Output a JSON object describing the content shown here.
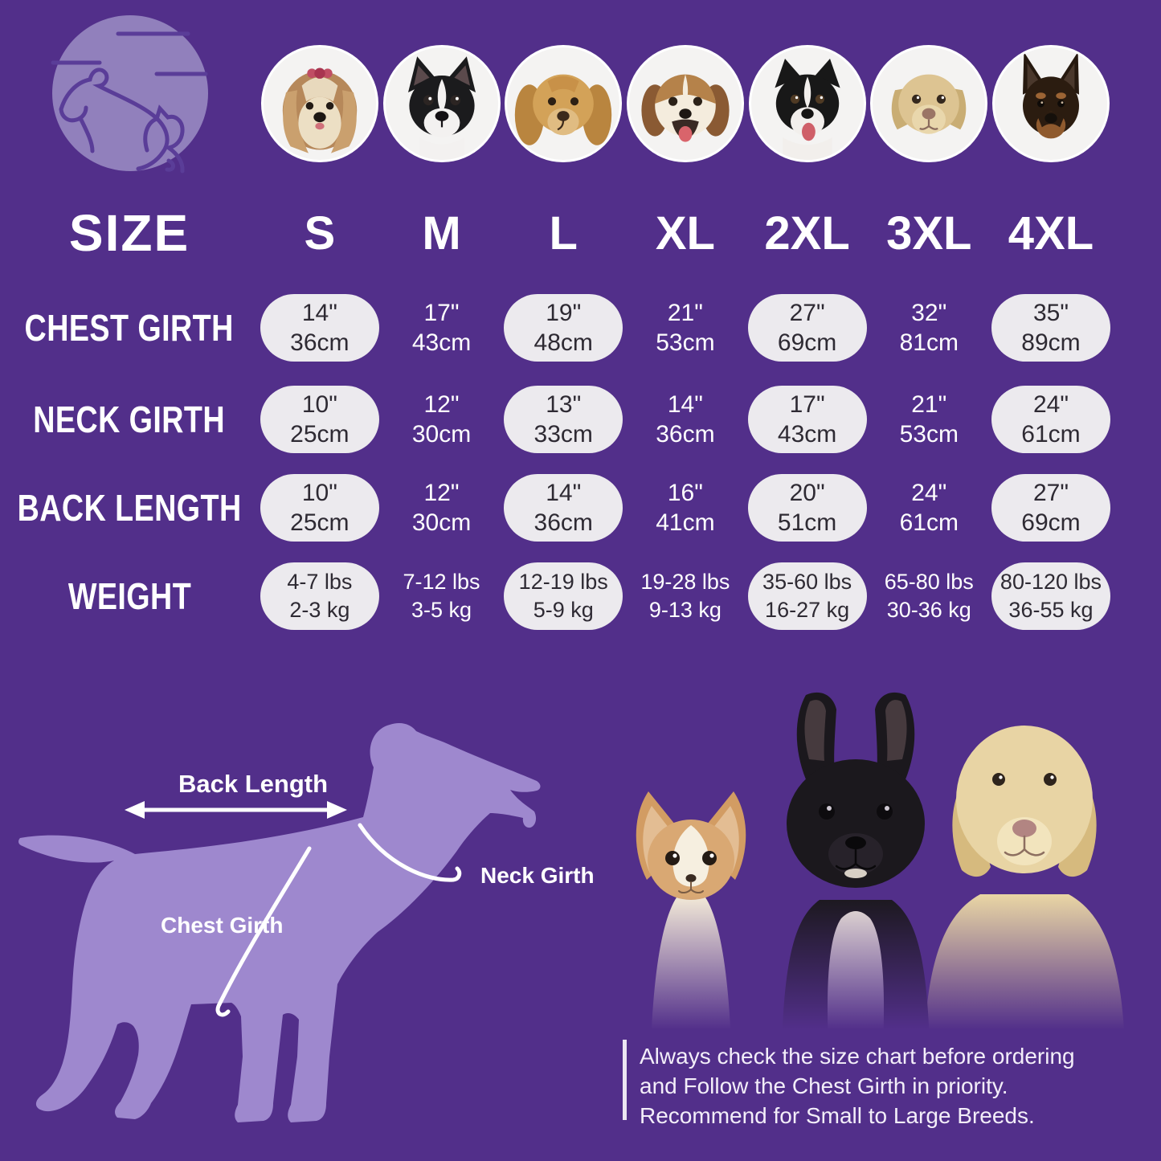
{
  "colors": {
    "background": "#522f8a",
    "silhouette": "#9e88ce",
    "logo_circle": "#9180bc",
    "logo_line": "#5a3d98",
    "pill_fill": "#eceaee",
    "pill_text": "#2e2a33",
    "text": "#ffffff"
  },
  "images": {
    "logo": "dog-and-cat-logo",
    "diagram": "dog-measurement-silhouette",
    "bottom_photo": "chihuahua-french-bulldog-labrador-photo"
  },
  "breeds": [
    "shih-tzu",
    "boston-terrier",
    "cocker-spaniel",
    "beagle",
    "border-collie",
    "labrador",
    "doberman"
  ],
  "table": {
    "corner_label": "SIZE",
    "sizes": [
      "S",
      "M",
      "L",
      "XL",
      "2XL",
      "3XL",
      "4XL"
    ],
    "rows": [
      {
        "label": "CHEST GIRTH",
        "cells": [
          [
            "14\"",
            "36cm"
          ],
          [
            "17\"",
            "43cm"
          ],
          [
            "19\"",
            "48cm"
          ],
          [
            "21\"",
            "53cm"
          ],
          [
            "27\"",
            "69cm"
          ],
          [
            "32\"",
            "81cm"
          ],
          [
            "35\"",
            "89cm"
          ]
        ]
      },
      {
        "label": "NECK GIRTH",
        "cells": [
          [
            "10\"",
            "25cm"
          ],
          [
            "12\"",
            "30cm"
          ],
          [
            "13\"",
            "33cm"
          ],
          [
            "14\"",
            "36cm"
          ],
          [
            "17\"",
            "43cm"
          ],
          [
            "21\"",
            "53cm"
          ],
          [
            "24\"",
            "61cm"
          ]
        ]
      },
      {
        "label": "BACK LENGTH",
        "cells": [
          [
            "10\"",
            "25cm"
          ],
          [
            "12\"",
            "30cm"
          ],
          [
            "14\"",
            "36cm"
          ],
          [
            "16\"",
            "41cm"
          ],
          [
            "20\"",
            "51cm"
          ],
          [
            "24\"",
            "61cm"
          ],
          [
            "27\"",
            "69cm"
          ]
        ]
      },
      {
        "label": "WEIGHT",
        "cells": [
          [
            "4-7 lbs",
            "2-3 kg"
          ],
          [
            "7-12 lbs",
            "3-5 kg"
          ],
          [
            "12-19 lbs",
            "5-9 kg"
          ],
          [
            "19-28 lbs",
            "9-13 kg"
          ],
          [
            "35-60 lbs",
            "16-27 kg"
          ],
          [
            "65-80 lbs",
            "30-36 kg"
          ],
          [
            "80-120 lbs",
            "36-55 kg"
          ]
        ]
      }
    ]
  },
  "diagram": {
    "back_length": "Back Length",
    "neck_girth": "Neck Girth",
    "chest_girth": "Chest Girth"
  },
  "note": {
    "lines": [
      "Always check the size chart before ordering",
      "and Follow the Chest Girth in priority.",
      "Recommend for Small to Large Breeds."
    ]
  },
  "chart_data": {
    "type": "table",
    "title": "Dog Apparel Size Chart",
    "columns": [
      "SIZE",
      "S",
      "M",
      "L",
      "XL",
      "2XL",
      "3XL",
      "4XL"
    ],
    "rows": [
      [
        "CHEST GIRTH",
        "14\" / 36cm",
        "17\" / 43cm",
        "19\" / 48cm",
        "21\" / 53cm",
        "27\" / 69cm",
        "32\" / 81cm",
        "35\" / 89cm"
      ],
      [
        "NECK GIRTH",
        "10\" / 25cm",
        "12\" / 30cm",
        "13\" / 33cm",
        "14\" / 36cm",
        "17\" / 43cm",
        "21\" / 53cm",
        "24\" / 61cm"
      ],
      [
        "BACK LENGTH",
        "10\" / 25cm",
        "12\" / 30cm",
        "14\" / 36cm",
        "16\" / 41cm",
        "20\" / 51cm",
        "24\" / 61cm",
        "27\" / 69cm"
      ],
      [
        "WEIGHT",
        "4-7 lbs / 2-3 kg",
        "7-12 lbs / 3-5 kg",
        "12-19 lbs / 5-9 kg",
        "19-28 lbs / 9-13 kg",
        "35-60 lbs / 16-27 kg",
        "65-80 lbs / 30-36 kg",
        "80-120 lbs / 36-55 kg"
      ]
    ],
    "annotations": [
      "Back Length",
      "Neck Girth",
      "Chest Girth"
    ]
  }
}
